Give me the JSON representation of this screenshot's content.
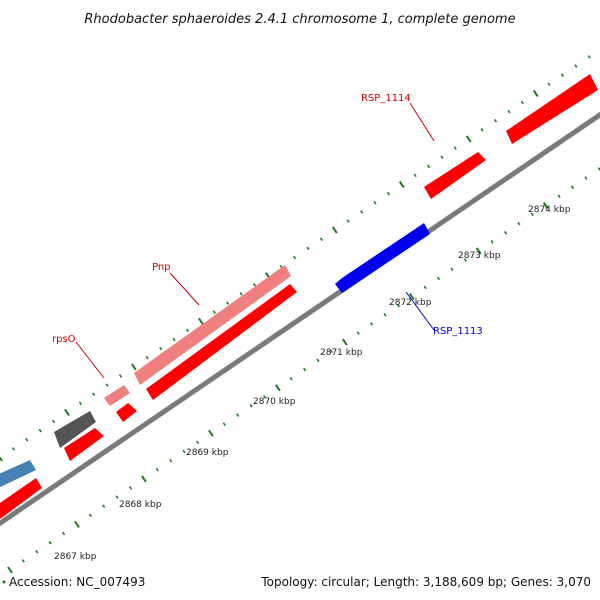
{
  "title": "Rhodobacter sphaeroides 2.4.1 chromosome 1, complete genome",
  "footer": {
    "accession": "Accession: NC_007493",
    "summary": "Topology: circular; Length: 3,188,609 bp; Genes: 3,070"
  },
  "colors": {
    "backbone": "#808080",
    "ticks": "#1e7a1e",
    "forward_cds": "#ff0000",
    "forward_cds_light": "#f08080",
    "reverse_cds": "#0000ee",
    "other_reverse_feature": "#4682b4",
    "other_feature": "#505050",
    "label_forward": "#cc0000",
    "label_reverse": "#0000cc"
  },
  "kbp_labels": [
    "2867 kbp",
    "2868 kbp",
    "2869 kbp",
    "2870 kbp",
    "2871 kbp",
    "2872 kbp",
    "2873 kbp",
    "2874 kbp"
  ],
  "gene_labels": {
    "rpsO": "rpsO",
    "pnp": "Pnp",
    "rsp1114": "RSP_1114",
    "rsp1113": "RSP_1113"
  }
}
